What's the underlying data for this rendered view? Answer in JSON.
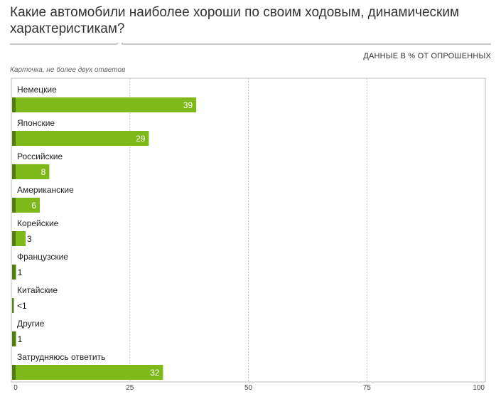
{
  "title": "Какие автомобили наиболее хороши по своим ходовым, динамическим характеристикам?",
  "units_label": "ДАННЫЕ В % ОТ ОПРОШЕННЫХ",
  "note": "Карточка, не более двух ответов",
  "colors": {
    "bar": "#7db919",
    "bar_stub": "#4f7d10",
    "grid": "#c8c8c8",
    "frame": "#bfbfbf"
  },
  "chart_data": {
    "type": "bar",
    "orientation": "horizontal",
    "categories": [
      "Немецкие",
      "Японские",
      "Российские",
      "Американские",
      "Корейские",
      "Французские",
      "Китайские",
      "Другие",
      "Затрудняюсь ответить"
    ],
    "values": [
      39,
      29,
      8,
      6,
      3,
      1,
      0.5,
      1,
      32
    ],
    "value_labels": [
      "39",
      "29",
      "8",
      "6",
      "3",
      "1",
      "<1",
      "1",
      "32"
    ],
    "xlim": [
      0,
      100
    ],
    "xticks": [
      "0",
      "25",
      "50",
      "75",
      "100"
    ],
    "grid": true
  }
}
